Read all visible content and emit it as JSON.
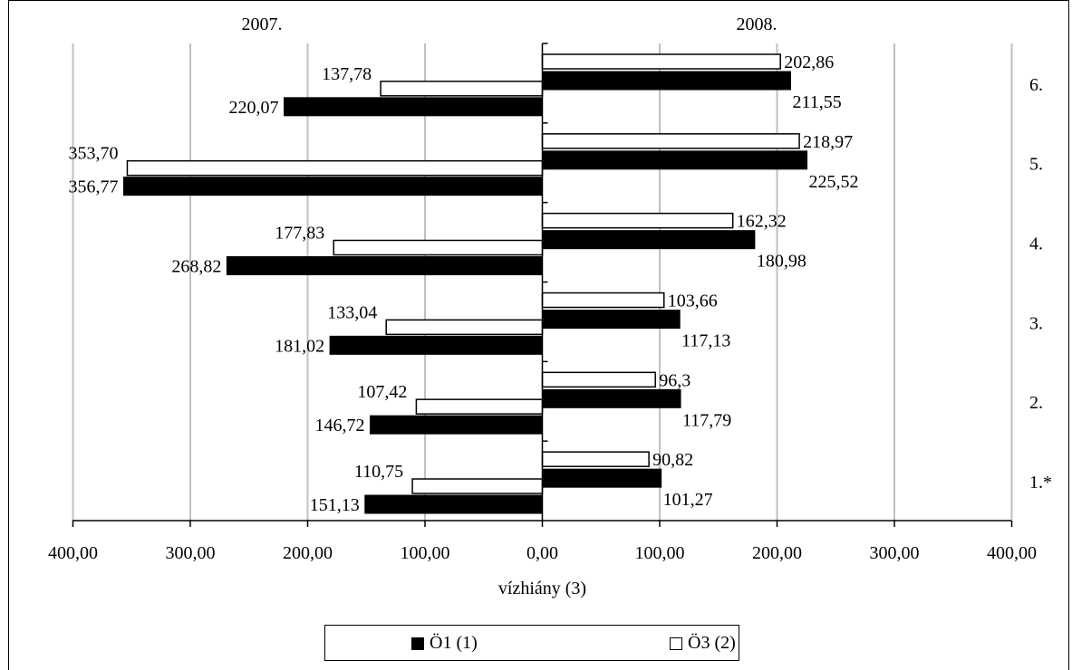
{
  "chart_data": {
    "type": "bar",
    "orientation": "horizontal-diverging",
    "panels": [
      "2007.",
      "2008."
    ],
    "categories": [
      "1.*",
      "2.",
      "3.",
      "4.",
      "5.",
      "6."
    ],
    "xlabel": "vízhiány (3)",
    "xlim": [
      -400,
      400
    ],
    "xticks": [
      {
        "value": -400,
        "label": "400,00"
      },
      {
        "value": -300,
        "label": "300,00"
      },
      {
        "value": -200,
        "label": "200,00"
      },
      {
        "value": -100,
        "label": "100,00"
      },
      {
        "value": 0,
        "label": "0,00"
      },
      {
        "value": 100,
        "label": "100,00"
      },
      {
        "value": 200,
        "label": "200,00"
      },
      {
        "value": 300,
        "label": "300,00"
      },
      {
        "value": 400,
        "label": "400,00"
      }
    ],
    "grid": true,
    "legend_position": "bottom",
    "series": [
      {
        "name": "Ö1 (1)",
        "color": "#000000",
        "values_2007": [
          151.13,
          146.72,
          181.02,
          268.82,
          356.77,
          220.07
        ],
        "values_2008": [
          101.27,
          117.79,
          117.13,
          180.98,
          225.52,
          211.55
        ],
        "labels_2007": [
          "151,13",
          "146,72",
          "181,02",
          "268,82",
          "356,77",
          "220,07"
        ],
        "labels_2008": [
          "101,27",
          "117,79",
          "117,13",
          "180,98",
          "225,52",
          "211,55"
        ]
      },
      {
        "name": "Ö3 (2)",
        "color": "#ffffff",
        "values_2007": [
          110.75,
          107.42,
          133.04,
          177.83,
          353.7,
          137.78
        ],
        "values_2008": [
          90.82,
          96.3,
          103.66,
          162.32,
          218.97,
          202.86
        ],
        "labels_2007": [
          "110,75",
          "107,42",
          "133,04",
          "177,83",
          "353,70",
          "137,78"
        ],
        "labels_2008": [
          "90,82",
          "96,3",
          "103,66",
          "162,32",
          "218,97",
          "202,86"
        ]
      }
    ]
  },
  "legend": {
    "item1_label": "Ö1 (1)",
    "item2_label": "Ö3 (2)"
  }
}
